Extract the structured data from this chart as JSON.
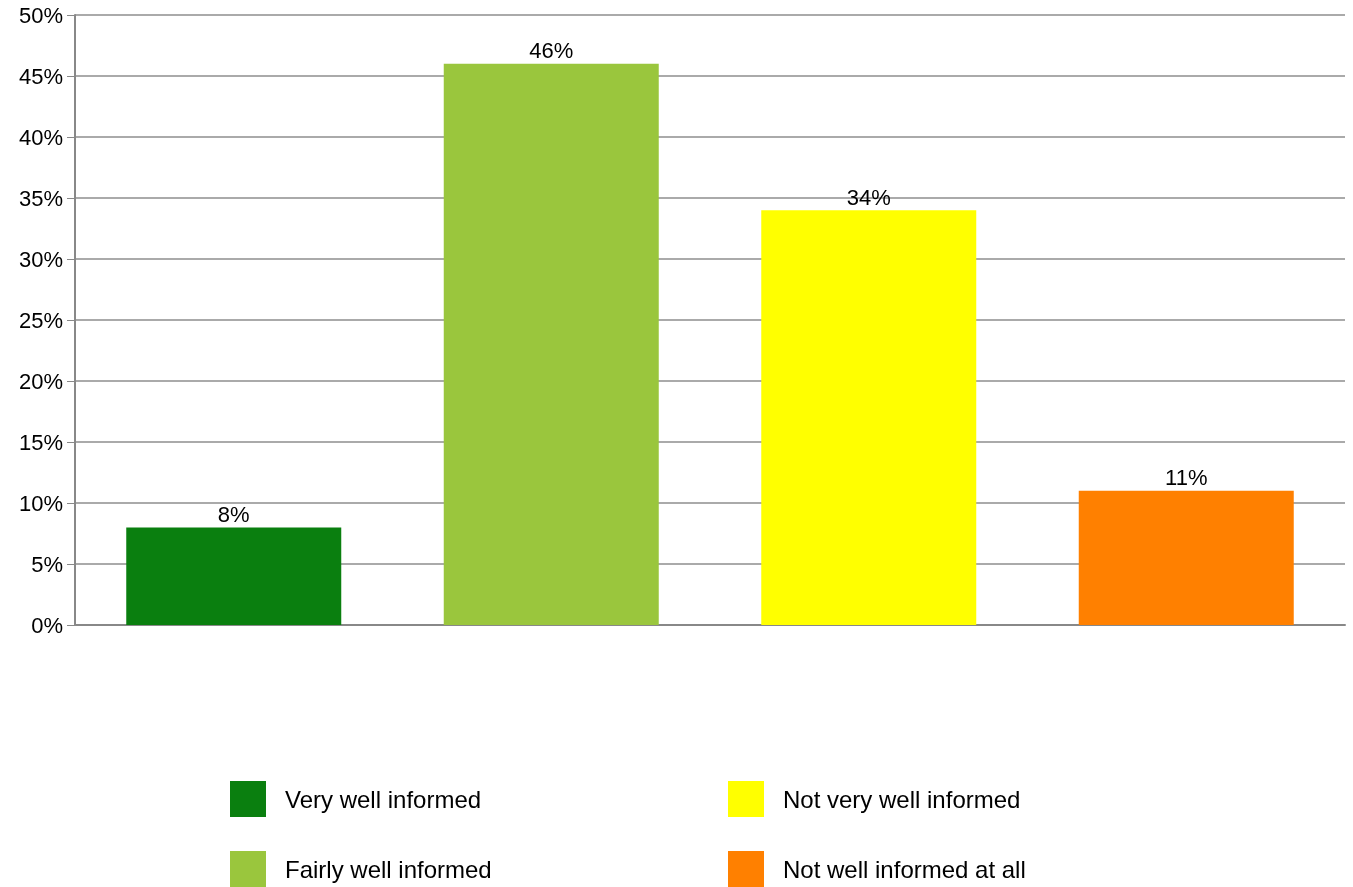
{
  "chart_data": {
    "type": "bar",
    "categories": [
      null,
      null,
      null,
      null
    ],
    "series": [
      {
        "name": "Very well informed",
        "color": "#0a7f0f",
        "values": [
          8,
          null,
          null,
          null
        ],
        "value_labels": [
          "8%",
          null,
          null,
          null
        ]
      },
      {
        "name": "Fairly well informed",
        "color": "#9ac63d",
        "values": [
          null,
          46,
          null,
          null
        ],
        "value_labels": [
          null,
          "46%",
          null,
          null
        ]
      },
      {
        "name": "Not very well informed",
        "color": "#ffff00",
        "values": [
          null,
          null,
          34,
          null
        ],
        "value_labels": [
          null,
          null,
          "34%",
          null
        ]
      },
      {
        "name": "Not well informed at all",
        "color": "#ff8000",
        "values": [
          null,
          null,
          null,
          11
        ],
        "value_labels": [
          null,
          null,
          null,
          "11%"
        ]
      }
    ],
    "ylim": [
      0,
      50
    ],
    "yticks": [
      {
        "value": 0,
        "label": "0%"
      },
      {
        "value": 5,
        "label": "5%"
      },
      {
        "value": 10,
        "label": "10%"
      },
      {
        "value": 15,
        "label": "15%"
      },
      {
        "value": 20,
        "label": "20%"
      },
      {
        "value": 25,
        "label": "25%"
      },
      {
        "value": 30,
        "label": "30%"
      },
      {
        "value": 35,
        "label": "35%"
      },
      {
        "value": 40,
        "label": "40%"
      },
      {
        "value": 45,
        "label": "45%"
      },
      {
        "value": 50,
        "label": "50%"
      }
    ],
    "grid": "y",
    "legend": "bottom"
  }
}
